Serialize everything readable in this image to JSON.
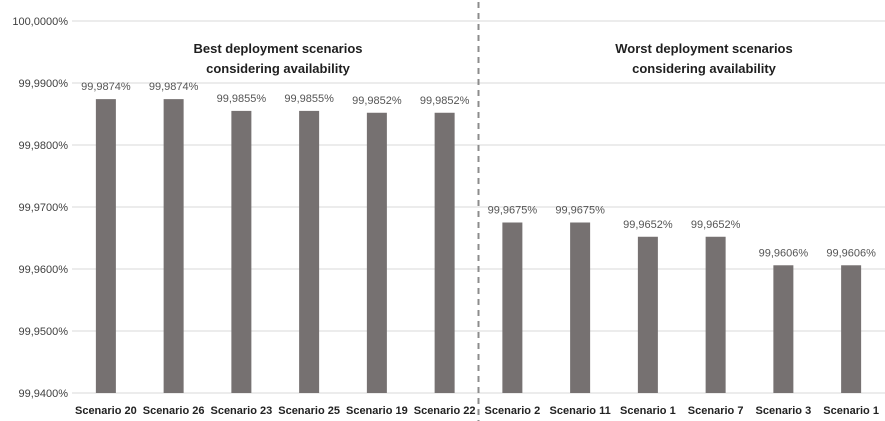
{
  "colors": {
    "bar": "#767171",
    "grid": "#d9d9d9",
    "divider": "#8c8c8c"
  },
  "chart_data": {
    "type": "bar",
    "grid": true,
    "legend": "none",
    "ylim": [
      99.94,
      100.0
    ],
    "yticks": [
      99.94,
      99.95,
      99.96,
      99.97,
      99.98,
      99.99,
      100.0
    ],
    "ytick_labels": [
      "99,9400%",
      "99,9500%",
      "99,9600%",
      "99,9700%",
      "99,9800%",
      "99,9900%",
      "100,0000%"
    ],
    "categories": [
      "Scenario 20",
      "Scenario 26",
      "Scenario 23",
      "Scenario 25",
      "Scenario 19",
      "Scenario 22",
      "Scenario 2",
      "Scenario 11",
      "Scenario 1",
      "Scenario 7",
      "Scenario 3",
      "Scenario 1"
    ],
    "values": [
      99.9874,
      99.9874,
      99.9855,
      99.9855,
      99.9852,
      99.9852,
      99.9675,
      99.9675,
      99.9652,
      99.9652,
      99.9606,
      99.9606
    ],
    "data_labels": [
      "99,9874%",
      "99,9874%",
      "99,9855%",
      "99,9855%",
      "99,9852%",
      "99,9852%",
      "99,9675%",
      "99,9675%",
      "99,9652%",
      "99,9652%",
      "99,9606%",
      "99,9606%"
    ],
    "groups": [
      {
        "title_lines": [
          "Best deployment scenarios",
          "considering availability"
        ],
        "categories": 6
      },
      {
        "title_lines": [
          "Worst deployment scenarios",
          "considering availability"
        ],
        "categories": 6
      }
    ]
  }
}
